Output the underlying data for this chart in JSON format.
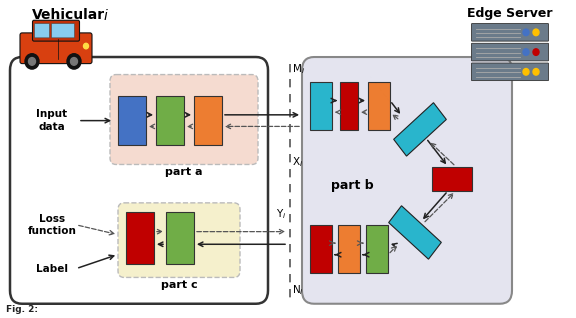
{
  "title_main": "Vehicular",
  "title_italic": "i",
  "edge_server_label": "Edge Server",
  "part_a_label": "part a",
  "part_b_label": "part b",
  "part_c_label": "part c",
  "input_data_label": "Input\ndata",
  "loss_function_label": "Loss\nfunction",
  "label_label": "Label",
  "fig_caption": "Fig. 2:",
  "block_blue": "#4472c4",
  "block_green_a": "#70ad47",
  "block_orange": "#ed7d31",
  "block_red": "#c00000",
  "block_cyan": "#29b5cc",
  "block_green_c": "#70ad47",
  "block_teal": "#29b5cc",
  "part_a_bg": "#f5dbd0",
  "part_c_bg": "#f5f0cc",
  "part_b_bg": "#e4e4ef",
  "veh_box_fc": "#ffffff",
  "veh_box_ec": "#333333",
  "part_b_ec": "#888888",
  "arrow_color": "#222222",
  "dash_color": "#555555",
  "server_body": "#6b7b8a",
  "server_dark": "#4a5a68"
}
